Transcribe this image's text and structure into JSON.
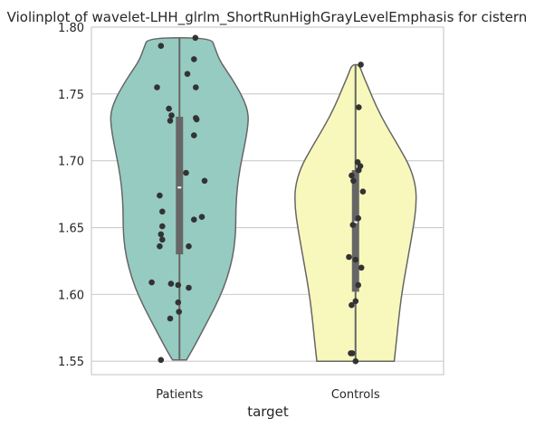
{
  "chart_data": {
    "type": "violin",
    "title": "Violinplot of wavelet-LHH_glrlm_ShortRunHighGrayLevelEmphasis for cistern",
    "xlabel": "target",
    "ylabel": "",
    "ylim": [
      1.54,
      1.8
    ],
    "yticks": [
      1.55,
      1.6,
      1.65,
      1.7,
      1.75,
      1.8
    ],
    "ytick_labels": [
      "1.55",
      "1.60",
      "1.65",
      "1.70",
      "1.75",
      "1.80"
    ],
    "grid": true,
    "categories": [
      "Patients",
      "Controls"
    ],
    "groups": [
      {
        "name": "Patients",
        "color": "#96cbc1",
        "min": 1.551,
        "max": 1.792,
        "q1": 1.63,
        "median": 1.68,
        "q3": 1.733,
        "density": [
          [
            1.551,
            0.1
          ],
          [
            1.56,
            0.2
          ],
          [
            1.575,
            0.35
          ],
          [
            1.59,
            0.5
          ],
          [
            1.605,
            0.63
          ],
          [
            1.62,
            0.72
          ],
          [
            1.635,
            0.78
          ],
          [
            1.65,
            0.8
          ],
          [
            1.665,
            0.8
          ],
          [
            1.68,
            0.82
          ],
          [
            1.695,
            0.86
          ],
          [
            1.71,
            0.92
          ],
          [
            1.725,
            0.97
          ],
          [
            1.735,
            0.98
          ],
          [
            1.745,
            0.92
          ],
          [
            1.755,
            0.82
          ],
          [
            1.765,
            0.7
          ],
          [
            1.775,
            0.57
          ],
          [
            1.785,
            0.5
          ],
          [
            1.792,
            0.45
          ]
        ],
        "points": [
          1.792,
          1.786,
          1.776,
          1.765,
          1.755,
          1.755,
          1.739,
          1.734,
          1.732,
          1.731,
          1.73,
          1.719,
          1.691,
          1.685,
          1.674,
          1.662,
          1.658,
          1.656,
          1.651,
          1.645,
          1.641,
          1.636,
          1.636,
          1.609,
          1.608,
          1.607,
          1.605,
          1.594,
          1.587,
          1.582,
          1.551
        ],
        "jitter": [
          0.6,
          -0.7,
          0.55,
          0.3,
          -0.85,
          0.62,
          -0.4,
          -0.3,
          0.62,
          0.65,
          -0.35,
          0.55,
          0.25,
          0.95,
          -0.75,
          -0.65,
          0.85,
          0.55,
          -0.65,
          -0.7,
          -0.65,
          0.35,
          -0.75,
          -1.05,
          -0.32,
          -0.05,
          0.35,
          -0.05,
          -0.02,
          -0.35,
          -0.7
        ]
      },
      {
        "name": "Controls",
        "color": "#f8f8bc",
        "min": 1.55,
        "max": 1.772,
        "q1": 1.602,
        "median": 1.654,
        "q3": 1.693,
        "density": [
          [
            1.55,
            0.55
          ],
          [
            1.56,
            0.57
          ],
          [
            1.575,
            0.6
          ],
          [
            1.59,
            0.63
          ],
          [
            1.605,
            0.67
          ],
          [
            1.62,
            0.72
          ],
          [
            1.635,
            0.77
          ],
          [
            1.65,
            0.82
          ],
          [
            1.665,
            0.86
          ],
          [
            1.68,
            0.86
          ],
          [
            1.695,
            0.78
          ],
          [
            1.71,
            0.62
          ],
          [
            1.725,
            0.45
          ],
          [
            1.74,
            0.3
          ],
          [
            1.755,
            0.18
          ],
          [
            1.765,
            0.1
          ],
          [
            1.772,
            0.05
          ]
        ],
        "points": [
          1.772,
          1.74,
          1.699,
          1.696,
          1.693,
          1.689,
          1.685,
          1.677,
          1.657,
          1.652,
          1.628,
          1.626,
          1.62,
          1.607,
          1.595,
          1.592,
          1.556,
          1.556,
          1.55
        ],
        "jitter": [
          0.2,
          0.12,
          0.08,
          0.18,
          0.12,
          -0.15,
          -0.08,
          0.28,
          0.1,
          -0.1,
          -0.25,
          0.0,
          0.22,
          0.1,
          0.0,
          -0.15,
          -0.18,
          -0.12,
          0.0
        ]
      }
    ]
  }
}
